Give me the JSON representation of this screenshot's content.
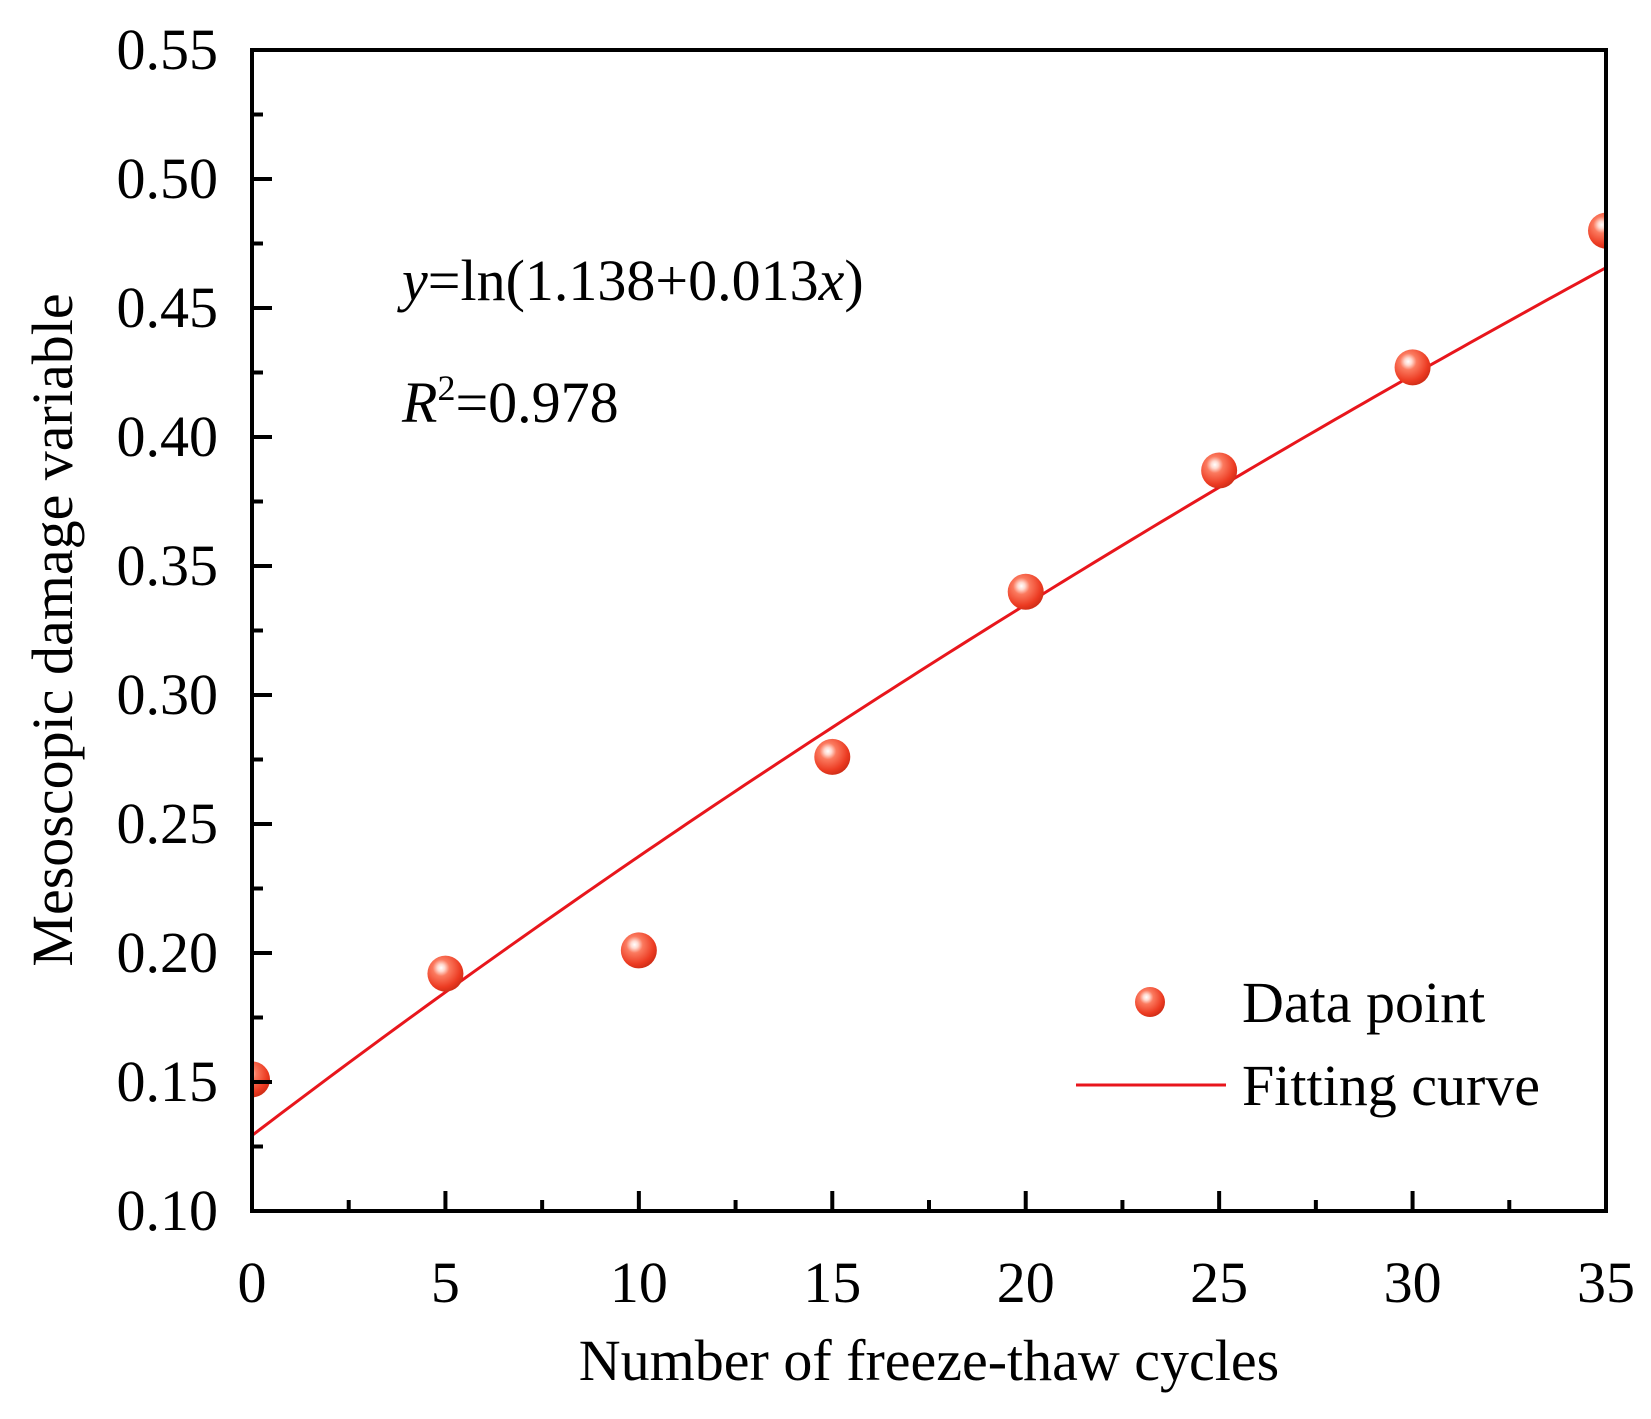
{
  "chart_data": {
    "type": "scatter",
    "title": "",
    "xlabel": "Number of freeze-thaw cycles",
    "ylabel": "Mesoscopic damage variable",
    "xlim": [
      0,
      35
    ],
    "ylim": [
      0.1,
      0.55
    ],
    "x_ticks": [
      0,
      5,
      10,
      15,
      20,
      25,
      30,
      35
    ],
    "x_tick_labels": [
      "0",
      "5",
      "10",
      "15",
      "20",
      "25",
      "30",
      "35"
    ],
    "y_ticks": [
      0.1,
      0.15,
      0.2,
      0.25,
      0.3,
      0.35,
      0.4,
      0.45,
      0.5,
      0.55
    ],
    "y_tick_labels": [
      "0.10",
      "0.15",
      "0.20",
      "0.25",
      "0.30",
      "0.35",
      "0.40",
      "0.45",
      "0.50",
      "0.55"
    ],
    "grid": false,
    "legend_position": "bottom-right",
    "series": [
      {
        "name": "Data point",
        "kind": "scatter",
        "color": "#f0452f",
        "x": [
          0,
          5,
          10,
          15,
          20,
          25,
          30,
          35
        ],
        "y": [
          0.151,
          0.192,
          0.201,
          0.276,
          0.34,
          0.387,
          0.427,
          0.48
        ]
      },
      {
        "name": "Fitting curve",
        "kind": "line",
        "color": "#e8161c",
        "equation": {
          "a": 1.138,
          "b": 0.013
        }
      }
    ],
    "annotations": {
      "equation": {
        "y_var": "y",
        "main": "=ln(1.138+0.013",
        "x_var": "x",
        "tail": ")"
      },
      "r_squared": {
        "symbol": "R",
        "sup": "2",
        "value": "=0.978"
      }
    }
  }
}
